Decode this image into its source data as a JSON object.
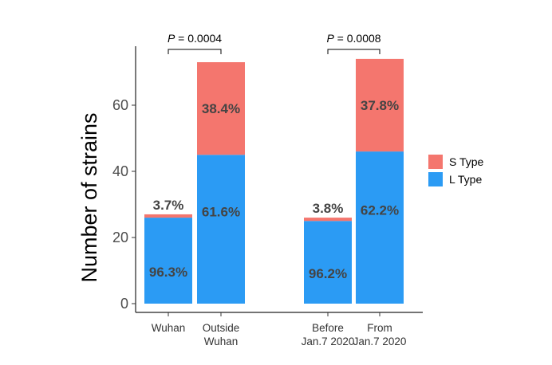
{
  "chart_data": {
    "type": "bar",
    "stacked": true,
    "ylabel": "Number of strains",
    "ylim": [
      0,
      75
    ],
    "yticks": [
      0,
      20,
      40,
      60
    ],
    "grid": false,
    "legend_position": "right",
    "categories": [
      [
        "Wuhan"
      ],
      [
        "Outside",
        "Wuhan"
      ],
      [
        "Before",
        "Jan.7 2020"
      ],
      [
        "From",
        "Jan.7 2020"
      ]
    ],
    "series": [
      {
        "name": "L Type",
        "color": "#2b9bf4",
        "values": [
          26,
          45,
          25,
          46
        ],
        "labels": [
          "96.3%",
          "61.6%",
          "96.2%",
          "62.2%"
        ]
      },
      {
        "name": "S Type",
        "color": "#f4766e",
        "values": [
          1,
          28,
          1,
          28
        ],
        "labels": [
          "3.7%",
          "38.4%",
          "3.8%",
          "37.8%"
        ]
      }
    ],
    "annotations": [
      {
        "prefix": "P",
        "text": " = 0.0004",
        "between": [
          0,
          1
        ]
      },
      {
        "prefix": "P",
        "text": " = 0.0008",
        "between": [
          2,
          3
        ]
      }
    ],
    "legend": [
      {
        "label": "S Type",
        "color": "#f4766e"
      },
      {
        "label": "L Type",
        "color": "#2b9bf4"
      }
    ]
  }
}
